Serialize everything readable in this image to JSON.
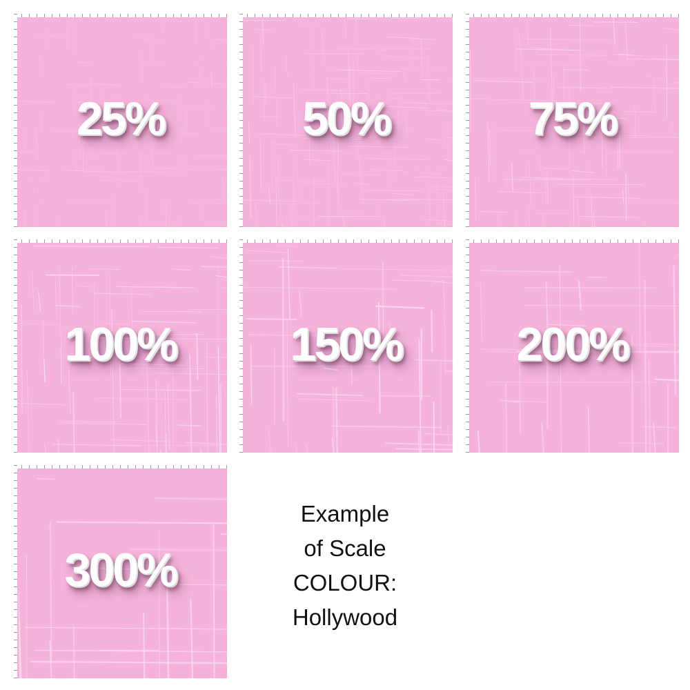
{
  "panels": [
    {
      "label": "25%"
    },
    {
      "label": "50%"
    },
    {
      "label": "75%"
    },
    {
      "label": "100%"
    },
    {
      "label": "150%"
    },
    {
      "label": "200%"
    },
    {
      "label": "300%"
    }
  ],
  "caption": {
    "line1": "Example",
    "line2": "of Scale",
    "line3": "COLOUR:",
    "line4": "Hollywood"
  },
  "colors": {
    "fabric": "#f5b3dc",
    "text": "#ffffff"
  }
}
